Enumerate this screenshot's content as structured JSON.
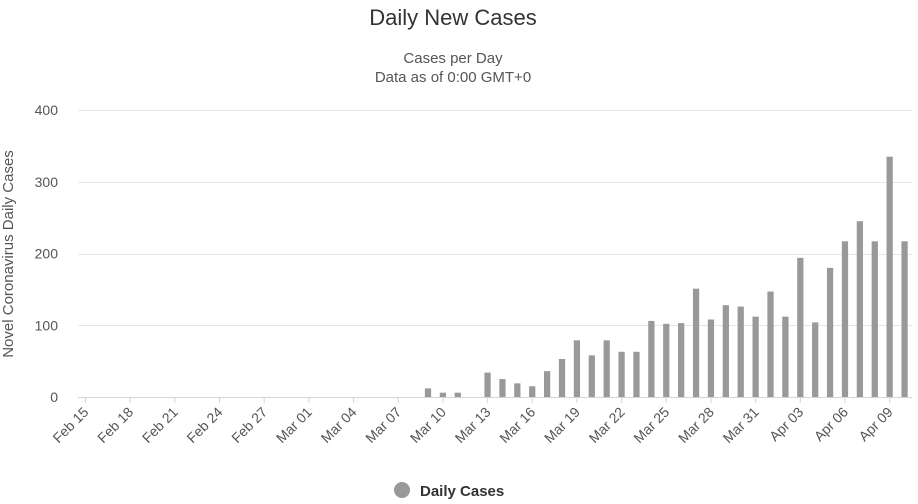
{
  "chart_data": {
    "type": "bar",
    "title": "Daily New Cases",
    "subtitle_lines": [
      "Cases per Day",
      "Data as of 0:00 GMT+0"
    ],
    "ylabel": "Novel Coronavirus Daily Cases",
    "xlabel": "",
    "ylim": [
      0,
      400
    ],
    "yticks": [
      0,
      100,
      200,
      300,
      400
    ],
    "grid": true,
    "legend_position": "bottom-center",
    "bar_color": "#999999",
    "categories": [
      "Feb 15",
      "Feb 16",
      "Feb 17",
      "Feb 18",
      "Feb 19",
      "Feb 20",
      "Feb 21",
      "Feb 22",
      "Feb 23",
      "Feb 24",
      "Feb 25",
      "Feb 26",
      "Feb 27",
      "Feb 28",
      "Feb 29",
      "Mar 01",
      "Mar 02",
      "Mar 03",
      "Mar 04",
      "Mar 05",
      "Mar 06",
      "Mar 07",
      "Mar 08",
      "Mar 09",
      "Mar 10",
      "Mar 11",
      "Mar 12",
      "Mar 13",
      "Mar 14",
      "Mar 15",
      "Mar 16",
      "Mar 17",
      "Mar 18",
      "Mar 19",
      "Mar 20",
      "Mar 21",
      "Mar 22",
      "Mar 23",
      "Mar 24",
      "Mar 25",
      "Mar 26",
      "Mar 27",
      "Mar 28",
      "Mar 29",
      "Mar 30",
      "Mar 31",
      "Apr 01",
      "Apr 02",
      "Apr 03",
      "Apr 04",
      "Apr 05",
      "Apr 06",
      "Apr 07",
      "Apr 08",
      "Apr 09",
      "Apr 10"
    ],
    "tick_labels": [
      "Feb 15",
      "Feb 18",
      "Feb 21",
      "Feb 24",
      "Feb 27",
      "Mar 01",
      "Mar 04",
      "Mar 07",
      "Mar 10",
      "Mar 13",
      "Mar 16",
      "Mar 19",
      "Mar 22",
      "Mar 25",
      "Mar 28",
      "Mar 31",
      "Apr 03",
      "Apr 06",
      "Apr 09"
    ],
    "series": [
      {
        "name": "Daily Cases",
        "values": [
          0,
          0,
          0,
          0,
          0,
          0,
          0,
          0,
          0,
          0,
          0,
          0,
          0,
          0,
          0,
          0,
          0,
          0,
          0,
          0,
          0,
          0,
          0,
          12,
          6,
          6,
          0,
          34,
          25,
          19,
          15,
          36,
          53,
          79,
          58,
          79,
          63,
          63,
          106,
          102,
          103,
          151,
          108,
          128,
          126,
          112,
          147,
          112,
          194,
          104,
          180,
          217,
          245,
          217,
          335,
          217
        ]
      }
    ]
  }
}
